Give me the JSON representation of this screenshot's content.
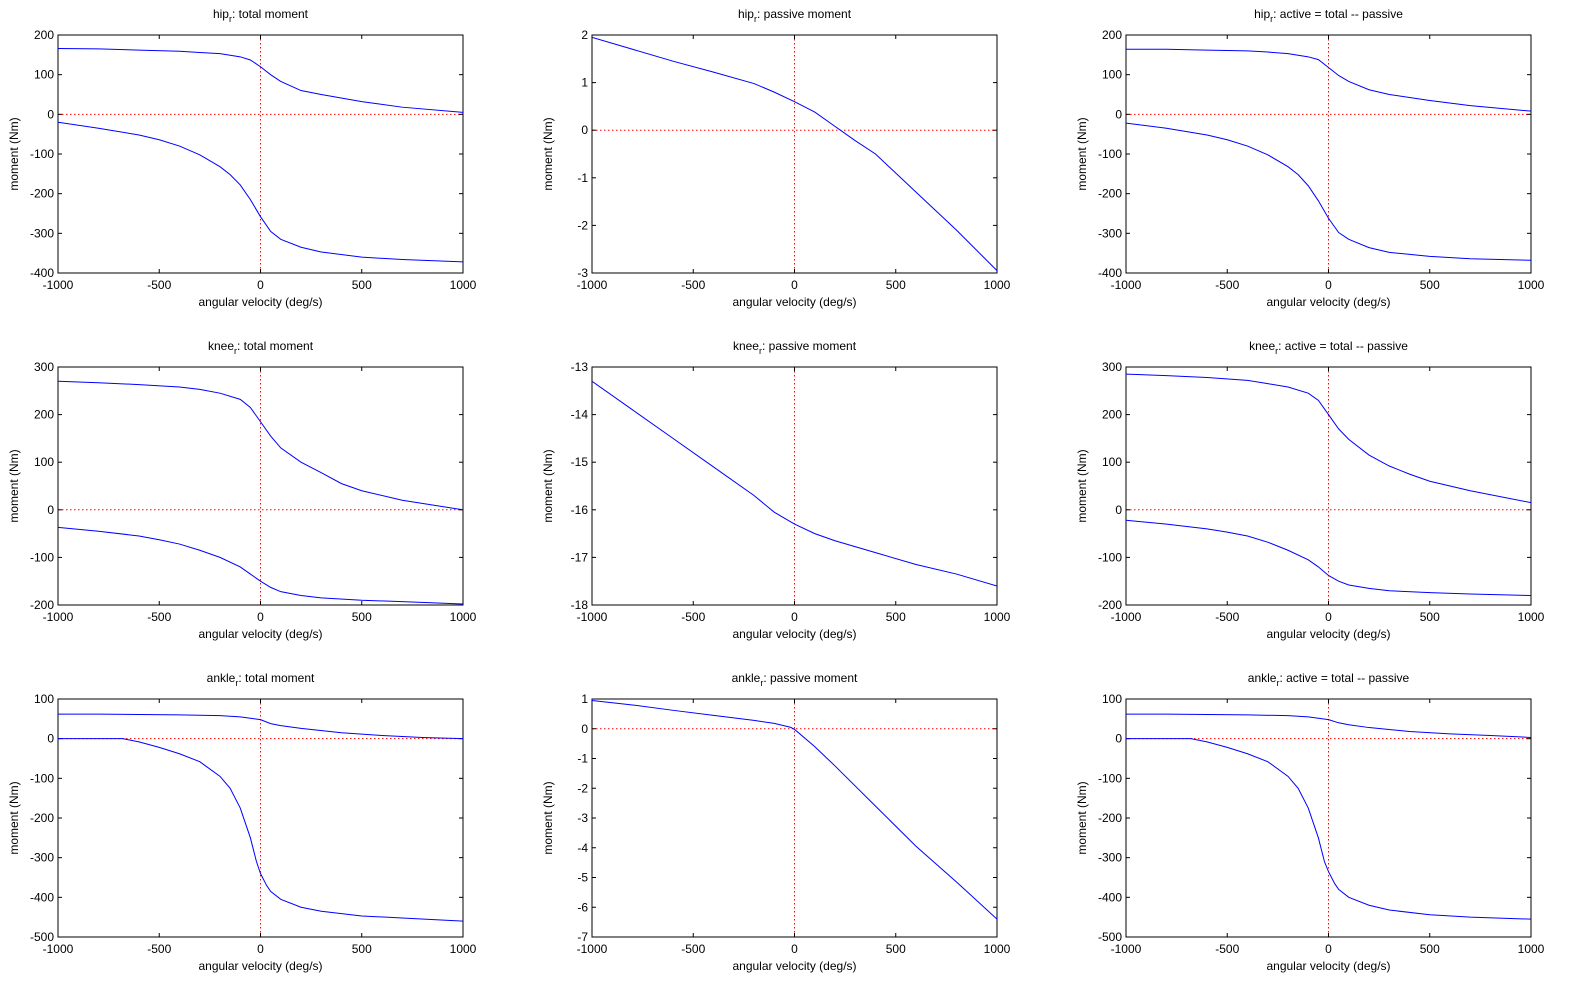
{
  "chart_data": [
    {
      "type": "line",
      "title": {
        "prefix": "hip",
        "sub": "r",
        "suffix": ": total moment"
      },
      "xlabel": "angular velocity (deg/s)",
      "ylabel": "moment (Nm)",
      "xlim": [
        -1000,
        1000
      ],
      "ylim": [
        -400,
        200
      ],
      "xticks": [
        -1000,
        -500,
        0,
        500,
        1000
      ],
      "yticks": [
        -400,
        -300,
        -200,
        -100,
        0,
        100,
        200
      ],
      "zero_lines": {
        "color": "#ff0000",
        "style": "dotted"
      },
      "series": [
        {
          "color": "#0000ff",
          "x": [
            -1000,
            -800,
            -600,
            -400,
            -300,
            -200,
            -100,
            -50,
            0,
            50,
            100,
            200,
            300,
            500,
            700,
            1000
          ],
          "y": [
            166,
            165,
            162,
            159,
            156,
            153,
            145,
            137,
            120,
            100,
            83,
            60,
            50,
            32,
            18,
            5
          ]
        },
        {
          "color": "#0000ff",
          "x": [
            -1000,
            -800,
            -600,
            -500,
            -400,
            -300,
            -200,
            -150,
            -100,
            -50,
            0,
            50,
            100,
            200,
            300,
            500,
            700,
            1000
          ],
          "y": [
            -20,
            -35,
            -52,
            -64,
            -80,
            -102,
            -132,
            -152,
            -178,
            -215,
            -258,
            -295,
            -315,
            -335,
            -347,
            -360,
            -366,
            -372
          ]
        }
      ]
    },
    {
      "type": "line",
      "title": {
        "prefix": "hip",
        "sub": "r",
        "suffix": ": passive moment"
      },
      "xlabel": "angular velocity (deg/s)",
      "ylabel": "moment (Nm)",
      "xlim": [
        -1000,
        1000
      ],
      "ylim": [
        -3,
        2
      ],
      "xticks": [
        -1000,
        -500,
        0,
        500,
        1000
      ],
      "yticks": [
        -3,
        -2,
        -1,
        0,
        1,
        2
      ],
      "zero_lines": {
        "color": "#ff0000",
        "style": "dotted"
      },
      "series": [
        {
          "color": "#0000ff",
          "x": [
            -1000,
            -800,
            -600,
            -400,
            -200,
            -100,
            0,
            100,
            200,
            300,
            400,
            600,
            800,
            1000
          ],
          "y": [
            1.95,
            1.7,
            1.45,
            1.22,
            0.98,
            0.8,
            0.6,
            0.38,
            0.08,
            -0.22,
            -0.5,
            -1.3,
            -2.1,
            -2.95
          ]
        }
      ]
    },
    {
      "type": "line",
      "title": {
        "prefix": "hip",
        "sub": "r",
        "suffix": ": active = total -- passive"
      },
      "xlabel": "angular velocity (deg/s)",
      "ylabel": "moment (Nm)",
      "xlim": [
        -1000,
        1000
      ],
      "ylim": [
        -400,
        200
      ],
      "xticks": [
        -1000,
        -500,
        0,
        500,
        1000
      ],
      "yticks": [
        -400,
        -300,
        -200,
        -100,
        0,
        100,
        200
      ],
      "zero_lines": {
        "color": "#ff0000",
        "style": "dotted"
      },
      "series": [
        {
          "color": "#0000ff",
          "x": [
            -1000,
            -800,
            -600,
            -400,
            -300,
            -200,
            -100,
            -50,
            0,
            50,
            100,
            200,
            300,
            500,
            700,
            1000
          ],
          "y": [
            164,
            164,
            162,
            160,
            157,
            153,
            145,
            138,
            118,
            98,
            83,
            62,
            50,
            35,
            22,
            8
          ]
        },
        {
          "color": "#0000ff",
          "x": [
            -1000,
            -800,
            -600,
            -500,
            -400,
            -300,
            -200,
            -150,
            -100,
            -50,
            0,
            50,
            100,
            200,
            300,
            500,
            700,
            1000
          ],
          "y": [
            -22,
            -35,
            -52,
            -64,
            -80,
            -102,
            -132,
            -152,
            -180,
            -218,
            -262,
            -298,
            -315,
            -336,
            -348,
            -358,
            -364,
            -368
          ]
        }
      ]
    },
    {
      "type": "line",
      "title": {
        "prefix": "knee",
        "sub": "r",
        "suffix": ": total moment"
      },
      "xlabel": "angular velocity (deg/s)",
      "ylabel": "moment (Nm)",
      "xlim": [
        -1000,
        1000
      ],
      "ylim": [
        -200,
        300
      ],
      "xticks": [
        -1000,
        -500,
        0,
        500,
        1000
      ],
      "yticks": [
        -200,
        -100,
        0,
        100,
        200,
        300
      ],
      "zero_lines": {
        "color": "#ff0000",
        "style": "dotted"
      },
      "series": [
        {
          "color": "#0000ff",
          "x": [
            -1000,
            -800,
            -600,
            -400,
            -300,
            -200,
            -100,
            -50,
            0,
            50,
            100,
            200,
            300,
            400,
            500,
            700,
            1000
          ],
          "y": [
            270,
            267,
            263,
            258,
            253,
            245,
            232,
            215,
            185,
            155,
            130,
            100,
            78,
            55,
            40,
            20,
            0
          ]
        },
        {
          "color": "#0000ff",
          "x": [
            -1000,
            -800,
            -600,
            -500,
            -400,
            -300,
            -200,
            -100,
            -50,
            0,
            50,
            100,
            200,
            300,
            500,
            700,
            1000
          ],
          "y": [
            -37,
            -45,
            -55,
            -63,
            -72,
            -85,
            -100,
            -120,
            -135,
            -150,
            -163,
            -172,
            -180,
            -185,
            -190,
            -193,
            -198
          ]
        }
      ]
    },
    {
      "type": "line",
      "title": {
        "prefix": "knee",
        "sub": "r",
        "suffix": ": passive moment"
      },
      "xlabel": "angular velocity (deg/s)",
      "ylabel": "moment (Nm)",
      "xlim": [
        -1000,
        1000
      ],
      "ylim": [
        -18,
        -13
      ],
      "xticks": [
        -1000,
        -500,
        0,
        500,
        1000
      ],
      "yticks": [
        -18,
        -17,
        -16,
        -15,
        -14,
        -13
      ],
      "zero_lines": {
        "color": "#ff0000",
        "style": "dotted"
      },
      "series": [
        {
          "color": "#0000ff",
          "x": [
            -1000,
            -800,
            -600,
            -400,
            -200,
            -100,
            0,
            100,
            200,
            400,
            600,
            800,
            1000
          ],
          "y": [
            -13.3,
            -13.9,
            -14.5,
            -15.1,
            -15.7,
            -16.05,
            -16.3,
            -16.5,
            -16.65,
            -16.9,
            -17.15,
            -17.35,
            -17.6
          ]
        }
      ]
    },
    {
      "type": "line",
      "title": {
        "prefix": "knee",
        "sub": "r",
        "suffix": ": active = total -- passive"
      },
      "xlabel": "angular velocity (deg/s)",
      "ylabel": "moment (Nm)",
      "xlim": [
        -1000,
        1000
      ],
      "ylim": [
        -200,
        300
      ],
      "xticks": [
        -1000,
        -500,
        0,
        500,
        1000
      ],
      "yticks": [
        -200,
        -100,
        0,
        100,
        200,
        300
      ],
      "zero_lines": {
        "color": "#ff0000",
        "style": "dotted"
      },
      "series": [
        {
          "color": "#0000ff",
          "x": [
            -1000,
            -800,
            -600,
            -400,
            -300,
            -200,
            -100,
            -50,
            0,
            50,
            100,
            200,
            300,
            400,
            500,
            700,
            1000
          ],
          "y": [
            285,
            282,
            278,
            272,
            265,
            258,
            245,
            230,
            200,
            170,
            148,
            115,
            92,
            75,
            60,
            40,
            15
          ]
        },
        {
          "color": "#0000ff",
          "x": [
            -1000,
            -800,
            -600,
            -500,
            -400,
            -300,
            -200,
            -100,
            -50,
            0,
            50,
            100,
            200,
            300,
            500,
            700,
            1000
          ],
          "y": [
            -22,
            -30,
            -40,
            -47,
            -55,
            -68,
            -85,
            -105,
            -120,
            -138,
            -150,
            -158,
            -165,
            -170,
            -174,
            -177,
            -180
          ]
        }
      ]
    },
    {
      "type": "line",
      "title": {
        "prefix": "ankle",
        "sub": "r",
        "suffix": ": total moment"
      },
      "xlabel": "angular velocity (deg/s)",
      "ylabel": "moment (Nm)",
      "xlim": [
        -1000,
        1000
      ],
      "ylim": [
        -500,
        100
      ],
      "xticks": [
        -1000,
        -500,
        0,
        500,
        1000
      ],
      "yticks": [
        -500,
        -400,
        -300,
        -200,
        -100,
        0,
        100
      ],
      "zero_lines": {
        "color": "#ff0000",
        "style": "dotted"
      },
      "series": [
        {
          "color": "#0000ff",
          "x": [
            -1000,
            -800,
            -600,
            -400,
            -200,
            -100,
            0,
            50,
            100,
            200,
            400,
            600,
            800,
            1000
          ],
          "y": [
            62,
            62,
            61,
            60,
            58,
            55,
            48,
            38,
            33,
            26,
            15,
            8,
            3,
            0
          ]
        },
        {
          "color": "#0000ff",
          "x": [
            -1000,
            -800,
            -680,
            -600,
            -500,
            -400,
            -300,
            -200,
            -150,
            -100,
            -50,
            -20,
            0,
            30,
            50,
            100,
            200,
            300,
            500,
            700,
            1000
          ],
          "y": [
            0,
            0,
            0,
            -8,
            -22,
            -38,
            -58,
            -95,
            -125,
            -175,
            -250,
            -310,
            -340,
            -370,
            -385,
            -405,
            -425,
            -435,
            -447,
            -452,
            -460
          ]
        }
      ]
    },
    {
      "type": "line",
      "title": {
        "prefix": "ankle",
        "sub": "r",
        "suffix": ": passive moment"
      },
      "xlabel": "angular velocity (deg/s)",
      "ylabel": "moment (Nm)",
      "xlim": [
        -1000,
        1000
      ],
      "ylim": [
        -7,
        1
      ],
      "xticks": [
        -1000,
        -500,
        0,
        500,
        1000
      ],
      "yticks": [
        -7,
        -6,
        -5,
        -4,
        -3,
        -2,
        -1,
        0,
        1
      ],
      "zero_lines": {
        "color": "#ff0000",
        "style": "dotted"
      },
      "series": [
        {
          "color": "#0000ff",
          "x": [
            -1000,
            -800,
            -600,
            -400,
            -200,
            -100,
            -20,
            0,
            100,
            200,
            400,
            600,
            800,
            1000
          ],
          "y": [
            0.95,
            0.8,
            0.62,
            0.45,
            0.28,
            0.18,
            0.05,
            -0.02,
            -0.6,
            -1.25,
            -2.6,
            -3.95,
            -5.15,
            -6.4
          ]
        }
      ]
    },
    {
      "type": "line",
      "title": {
        "prefix": "ankle",
        "sub": "r",
        "suffix": ": active = total -- passive"
      },
      "xlabel": "angular velocity (deg/s)",
      "ylabel": "moment (Nm)",
      "xlim": [
        -1000,
        1000
      ],
      "ylim": [
        -500,
        100
      ],
      "xticks": [
        -1000,
        -500,
        0,
        500,
        1000
      ],
      "yticks": [
        -500,
        -400,
        -300,
        -200,
        -100,
        0,
        100
      ],
      "zero_lines": {
        "color": "#ff0000",
        "style": "dotted"
      },
      "series": [
        {
          "color": "#0000ff",
          "x": [
            -1000,
            -800,
            -600,
            -400,
            -200,
            -100,
            0,
            50,
            100,
            200,
            400,
            600,
            800,
            1000
          ],
          "y": [
            62,
            62,
            61,
            60,
            58,
            55,
            48,
            40,
            35,
            28,
            18,
            12,
            8,
            3
          ]
        },
        {
          "color": "#0000ff",
          "x": [
            -1000,
            -800,
            -680,
            -600,
            -500,
            -400,
            -300,
            -200,
            -150,
            -100,
            -50,
            -20,
            0,
            30,
            50,
            100,
            200,
            300,
            500,
            700,
            1000
          ],
          "y": [
            0,
            0,
            0,
            -8,
            -22,
            -38,
            -58,
            -95,
            -125,
            -175,
            -250,
            -310,
            -335,
            -365,
            -380,
            -400,
            -420,
            -432,
            -444,
            -450,
            -455
          ]
        }
      ]
    }
  ]
}
